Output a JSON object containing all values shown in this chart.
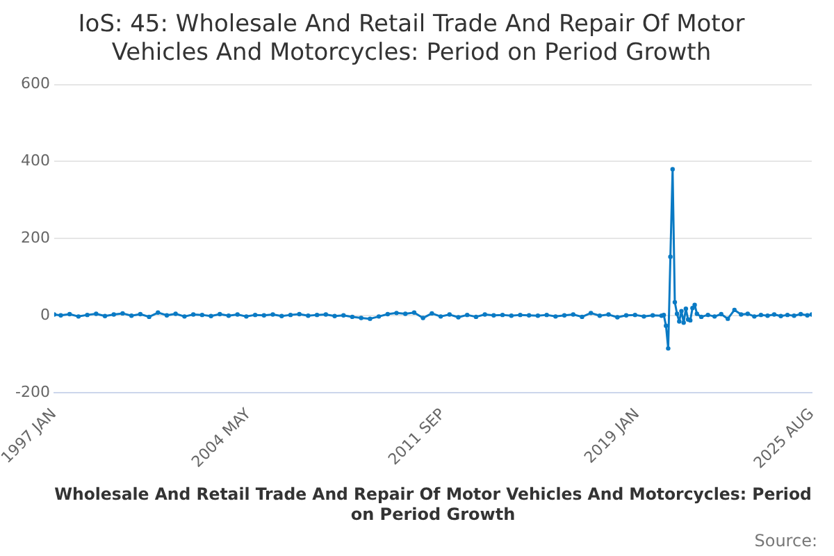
{
  "chart_data": {
    "type": "line",
    "title": "IoS: 45: Wholesale And Retail Trade And Repair Of Motor Vehicles And Motorcycles: Period on Period Growth",
    "xlabel": "Wholesale And Retail Trade And Repair Of Motor Vehicles And Motorcycles: Period on Period Growth",
    "annotations": [
      "Source:"
    ],
    "x": [
      "1997-01",
      "1997-04",
      "1997-08",
      "1997-12",
      "1998-04",
      "1998-08",
      "1998-12",
      "1999-04",
      "1999-08",
      "1999-12",
      "2000-04",
      "2000-08",
      "2000-12",
      "2001-04",
      "2001-08",
      "2001-12",
      "2002-04",
      "2002-08",
      "2002-12",
      "2003-04",
      "2003-08",
      "2003-12",
      "2004-04",
      "2004-08",
      "2004-12",
      "2005-04",
      "2005-08",
      "2005-12",
      "2006-04",
      "2006-08",
      "2006-12",
      "2007-04",
      "2007-08",
      "2007-12",
      "2008-04",
      "2008-08",
      "2008-12",
      "2009-04",
      "2009-08",
      "2009-12",
      "2010-04",
      "2010-08",
      "2010-12",
      "2011-04",
      "2011-08",
      "2011-12",
      "2012-04",
      "2012-08",
      "2012-12",
      "2013-04",
      "2013-08",
      "2013-12",
      "2014-04",
      "2014-08",
      "2014-12",
      "2015-04",
      "2015-08",
      "2015-12",
      "2016-04",
      "2016-08",
      "2016-12",
      "2017-04",
      "2017-08",
      "2017-12",
      "2018-04",
      "2018-08",
      "2018-12",
      "2019-04",
      "2019-08",
      "2019-12",
      "2020-01",
      "2020-02",
      "2020-03",
      "2020-04",
      "2020-05",
      "2020-06",
      "2020-07",
      "2020-08",
      "2020-09",
      "2020-10",
      "2020-11",
      "2020-12",
      "2021-01",
      "2021-02",
      "2021-03",
      "2021-04",
      "2021-06",
      "2021-09",
      "2021-12",
      "2022-03",
      "2022-06",
      "2022-09",
      "2022-12",
      "2023-03",
      "2023-06",
      "2023-09",
      "2023-12",
      "2024-03",
      "2024-06",
      "2024-09",
      "2024-12",
      "2025-03",
      "2025-06",
      "2025-08"
    ],
    "series": [
      {
        "color": "#0a7ac4",
        "values": [
          3,
          1,
          4,
          -2,
          2,
          5,
          -1,
          3,
          6,
          0,
          4,
          -3,
          8,
          1,
          5,
          -2,
          3,
          2,
          -1,
          4,
          0,
          3,
          -2,
          2,
          1,
          3,
          -1,
          2,
          4,
          0,
          2,
          3,
          -1,
          1,
          -3,
          -6,
          -8,
          -2,
          4,
          7,
          5,
          8,
          -6,
          6,
          -2,
          3,
          -4,
          2,
          -3,
          3,
          1,
          2,
          0,
          2,
          1,
          0,
          2,
          -2,
          1,
          3,
          -3,
          7,
          0,
          3,
          -4,
          1,
          2,
          -2,
          1,
          0,
          2,
          -26,
          -85,
          153,
          380,
          35,
          5,
          -15,
          12,
          -18,
          18,
          -10,
          -12,
          20,
          28,
          5,
          -3,
          2,
          -2,
          4,
          -8,
          15,
          3,
          5,
          -2,
          2,
          0,
          3,
          -1,
          2,
          0,
          4,
          1,
          3
        ]
      }
    ],
    "xlim": [
      "1997-01",
      "2025-08"
    ],
    "xticks": [
      {
        "value": "1997-01",
        "label": "1997 JAN"
      },
      {
        "value": "2004-05",
        "label": "2004 MAY"
      },
      {
        "value": "2011-09",
        "label": "2011 SEP"
      },
      {
        "value": "2019-01",
        "label": "2019 JAN"
      },
      {
        "value": "2025-08",
        "label": "2025 AUG"
      }
    ],
    "ylim": [
      -200,
      600
    ],
    "yticks": [
      -200,
      0,
      200,
      400,
      600
    ],
    "grid": "y",
    "marker": "circle",
    "line_style": "solid"
  }
}
